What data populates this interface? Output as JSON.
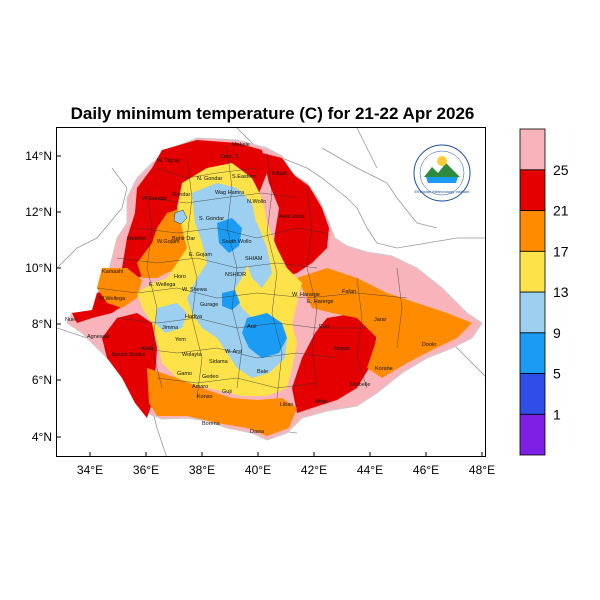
{
  "title": "Daily minimum temperature (C) for 21-22 Apr 2026",
  "lon_ticks": [
    "34°E",
    "36°E",
    "38°E",
    "40°E",
    "42°E",
    "44°E",
    "46°E",
    "48°E"
  ],
  "lat_ticks": [
    "14°N",
    "12°N",
    "10°N",
    "8°N",
    "6°N",
    "4°N"
  ],
  "colorbar": {
    "labels": [
      "25",
      "21",
      "17",
      "13",
      "9",
      "5",
      "1"
    ],
    "colors": [
      "#7d1fe5",
      "#2f4ee8",
      "#1a9cf5",
      "#9ccff0",
      "#fde24a",
      "#ff8c00",
      "#e40000",
      "#f9b4bb"
    ]
  },
  "regions": [
    "Cent. T.",
    "Mekele",
    "W. Tigray",
    "N. Gondar",
    "S.Eastern",
    "Kilbali",
    "Gondar",
    "W Gondar",
    "Wag Hamra",
    "N.Wollo",
    "S. Gondar",
    "Awsi Zone",
    "Metekel",
    "Bahir Dar",
    "South Wollo",
    "E. Gojam",
    "W.Gojam",
    "NSHIDR",
    "SHIAM",
    "Horo",
    "E. Wellega",
    "W.Wellega",
    "Kamashi",
    "W. Shewa",
    "E. Harerge",
    "W. Hararge",
    "Fafan",
    "Jarar",
    "Erer",
    "Nogob",
    "Doolo",
    "Korahe",
    "Shabelle",
    "Afder",
    "Liban",
    "Dawa",
    "Borena",
    "Bale",
    "Arsi",
    "W. Arsi",
    "Sidama",
    "Gedeo",
    "Guji",
    "Gamo",
    "Wolayta",
    "Jimma",
    "Kefa",
    "Bench Sheko",
    "Agnewak",
    "Nuer",
    "Konso",
    "Amaro",
    "Yem",
    "Hadiya",
    "Gurage"
  ],
  "logo_text": "Ethiopian Meteorology Institute"
}
